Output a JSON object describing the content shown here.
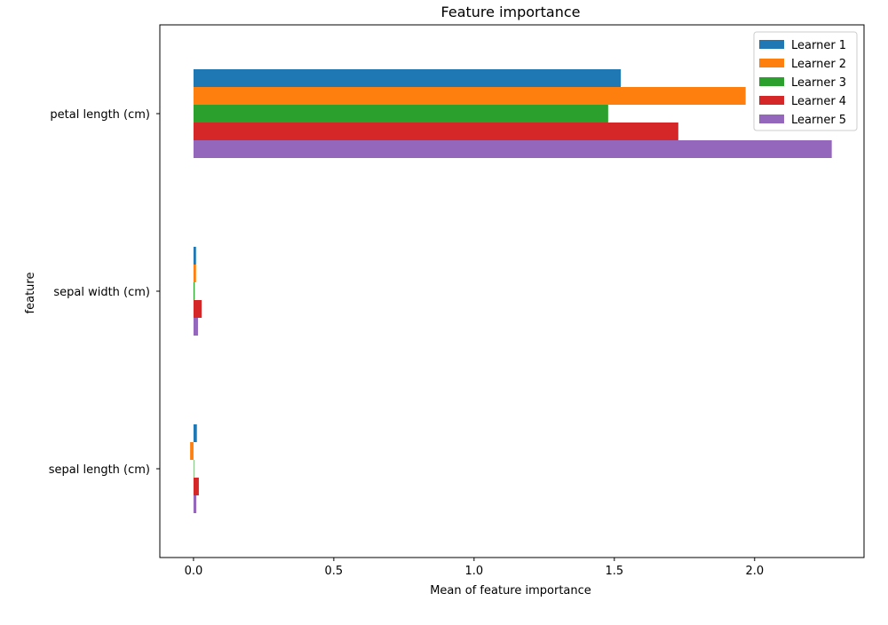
{
  "chart_data": {
    "type": "bar",
    "orientation": "horizontal",
    "title": "Feature importance",
    "xlabel": "Mean of feature importance",
    "ylabel": "feature",
    "categories": [
      "sepal length (cm)",
      "sepal width (cm)",
      "petal length (cm)"
    ],
    "series": [
      {
        "name": "Learner 1",
        "color": "#1f77b4",
        "values": [
          0.012,
          0.009,
          1.523
        ]
      },
      {
        "name": "Learner 2",
        "color": "#ff7f0e",
        "values": [
          -0.012,
          0.009,
          1.968
        ]
      },
      {
        "name": "Learner 3",
        "color": "#2ca02c",
        "values": [
          0.002,
          0.004,
          1.478
        ]
      },
      {
        "name": "Learner 4",
        "color": "#d62728",
        "values": [
          0.019,
          0.029,
          1.728
        ]
      },
      {
        "name": "Learner 5",
        "color": "#9467bd",
        "values": [
          0.01,
          0.016,
          2.275
        ]
      }
    ],
    "xlim": [
      -0.12,
      2.39
    ],
    "xticks": [
      0.0,
      0.5,
      1.0,
      1.5,
      2.0
    ],
    "xtick_labels": [
      "0.0",
      "0.5",
      "1.0",
      "1.5",
      "2.0"
    ],
    "grid": false,
    "legend_position": "top-right"
  }
}
